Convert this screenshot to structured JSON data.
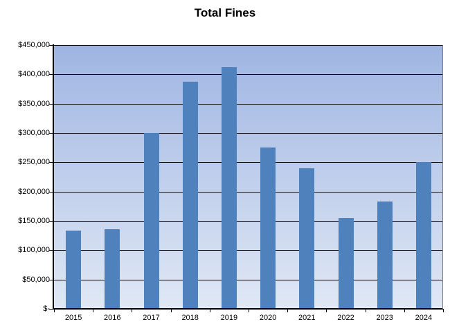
{
  "title": "Total Fines",
  "colors": {
    "bar_fill": "#4f81bd",
    "plot_bg_top": "#9fb5e2",
    "plot_bg_bottom": "#e0e8f5",
    "gridline": "#000000",
    "axis": "#000000",
    "text": "#000000",
    "background": "#ffffff"
  },
  "chart_data": {
    "type": "bar",
    "title": "Total Fines",
    "categories": [
      "2015",
      "2016",
      "2017",
      "2018",
      "2019",
      "2020",
      "2021",
      "2022",
      "2023",
      "2024"
    ],
    "values": [
      134000,
      136000,
      300000,
      388000,
      412000,
      275000,
      240000,
      155000,
      183000,
      250000
    ],
    "series_name": "Total Fines",
    "xlabel": "",
    "ylabel": "",
    "ylim": [
      0,
      450000
    ],
    "yticks": [
      0,
      50000,
      100000,
      150000,
      200000,
      250000,
      300000,
      350000,
      400000,
      450000
    ],
    "ytick_labels": [
      "$-",
      "$50,000",
      "$100,000",
      "$150,000",
      "$200,000",
      "$250,000",
      "$300,000",
      "$350,000",
      "$400,000",
      "$450,000"
    ],
    "grid": true,
    "legend": false
  }
}
